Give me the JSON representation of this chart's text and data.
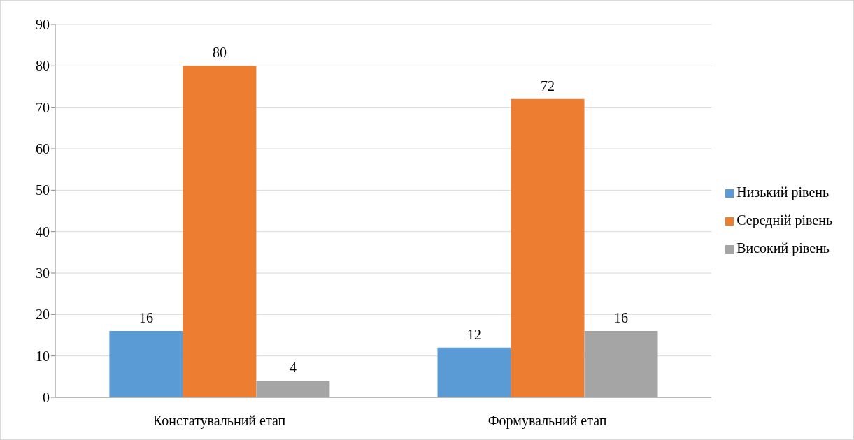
{
  "chart_data": {
    "type": "bar",
    "categories": [
      "Констатувальний етап",
      "Формувальний етап"
    ],
    "series": [
      {
        "name": "Низький рівень",
        "color": "#5b9bd5",
        "values": [
          16,
          12
        ]
      },
      {
        "name": "Середній рівень",
        "color": "#ed7d31",
        "values": [
          80,
          72
        ]
      },
      {
        "name": "Високий рівень",
        "color": "#a5a5a5",
        "values": [
          4,
          16
        ]
      }
    ],
    "ylim": [
      0,
      90
    ],
    "yticks": [
      0,
      10,
      20,
      30,
      40,
      50,
      60,
      70,
      80,
      90
    ],
    "grid": "y",
    "legend": "right",
    "data_labels": true
  }
}
